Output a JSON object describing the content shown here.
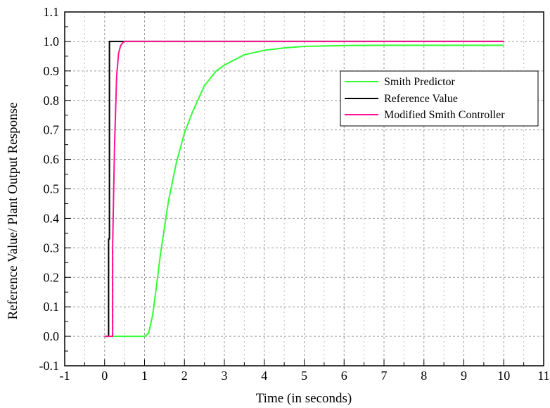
{
  "chart_data": {
    "type": "line",
    "title": "",
    "xlabel": "Time (in seconds)",
    "ylabel": "Reference Value/ Plant Output Response",
    "xlim": [
      -1,
      11
    ],
    "ylim": [
      -0.1,
      1.1
    ],
    "x_ticks": [
      "-1",
      "0",
      "1",
      "2",
      "3",
      "4",
      "5",
      "6",
      "7",
      "8",
      "9",
      "10",
      "11"
    ],
    "y_ticks": [
      "-0.1",
      "0.0",
      "0.1",
      "0.2",
      "0.3",
      "0.4",
      "0.5",
      "0.6",
      "0.7",
      "0.8",
      "0.9",
      "1.0",
      "1.1"
    ],
    "grid": true,
    "legend_position": "top-right",
    "series": [
      {
        "name": "Smith Predictor",
        "color": "#33ff33",
        "x": [
          0,
          0.5,
          1.0,
          1.1,
          1.2,
          1.3,
          1.4,
          1.5,
          1.6,
          1.8,
          2.0,
          2.2,
          2.5,
          2.8,
          3.0,
          3.5,
          4.0,
          4.5,
          5.0,
          6.0,
          7.0,
          8.0,
          9.0,
          10.0
        ],
        "y": [
          0,
          0,
          0,
          0.01,
          0.07,
          0.17,
          0.28,
          0.37,
          0.46,
          0.59,
          0.69,
          0.76,
          0.85,
          0.9,
          0.92,
          0.955,
          0.97,
          0.978,
          0.983,
          0.986,
          0.987,
          0.987,
          0.987,
          0.987
        ]
      },
      {
        "name": "Reference Value",
        "color": "#000000",
        "x": [
          0,
          0.1,
          0.1,
          0.12,
          0.12,
          10.0
        ],
        "y": [
          0,
          0,
          0.33,
          0.33,
          1.0,
          1.0
        ]
      },
      {
        "name": "Modified Smith Controller",
        "color": "#ff1493",
        "x": [
          0,
          0.2,
          0.2,
          0.25,
          0.3,
          0.35,
          0.4,
          0.45,
          0.5,
          0.6,
          10.0
        ],
        "y": [
          0,
          0,
          0.3,
          0.65,
          0.88,
          0.96,
          0.985,
          0.995,
          1.0,
          1.0,
          1.0
        ]
      }
    ]
  }
}
